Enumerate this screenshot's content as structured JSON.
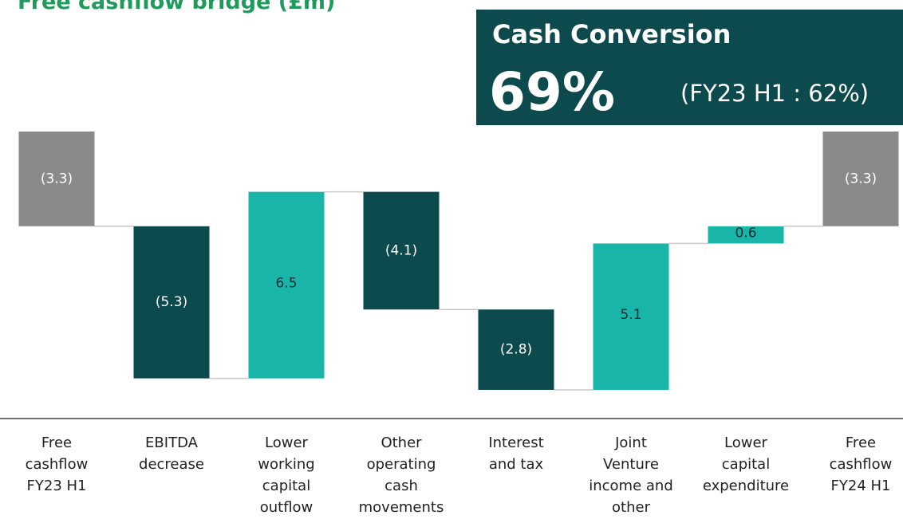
{
  "chart_data": {
    "type": "waterfall",
    "title": "Free cashflow bridge (£m)",
    "categories": [
      "Free\ncashflow\nFY23 H1",
      "EBITDA\ndecrease",
      "Lower\nworking\ncapital\noutflow",
      "Other\noperating\ncash\nmovements",
      "Interest\nand tax",
      "Joint\nVenture\nincome and\nother",
      "Lower\ncapital\nexpenditure",
      "Free\ncashflow\nFY24 H1"
    ],
    "values": [
      -3.3,
      -5.3,
      6.5,
      -4.1,
      -2.8,
      5.1,
      0.6,
      -3.3
    ],
    "value_labels": [
      "(3.3)",
      "(5.3)",
      "6.5",
      "(4.1)",
      "(2.8)",
      "5.1",
      "0.6",
      "(3.3)"
    ],
    "total_indices": [
      0,
      7
    ],
    "colors": {
      "total": "#8a8a8a",
      "decrease": "#0c4a4d",
      "increase": "#1ab5a9"
    },
    "ylim": [
      -10,
      0
    ],
    "callout": {
      "title": "Cash Conversion",
      "value": "69%",
      "comparison": "(FY23 H1 : 62%)"
    }
  }
}
